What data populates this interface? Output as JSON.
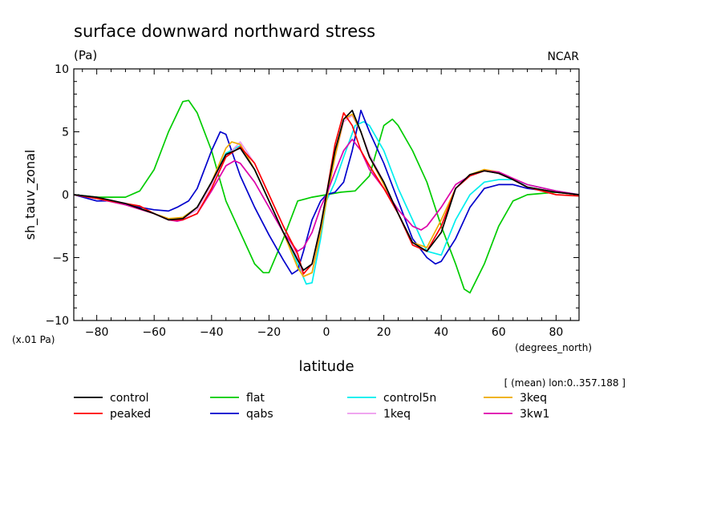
{
  "chart_data": {
    "type": "line",
    "title": "surface downward northward stress",
    "units": "(Pa)",
    "source": "NCAR",
    "ylabel": "sh_tauv_zonal",
    "xlabel": "latitude",
    "xunits": "(degrees_north)",
    "yscale_note": "(x.01 Pa)",
    "mean_note": "[ (mean) lon:0..357.188 ]",
    "xlim": [
      -88,
      88
    ],
    "ylim": [
      -10,
      10
    ],
    "xticks": [
      -80,
      -60,
      -40,
      -20,
      0,
      20,
      40,
      60,
      80
    ],
    "yticks": [
      -10,
      -5,
      0,
      5,
      10
    ],
    "legend_position": "bottom",
    "series": [
      {
        "name": "control",
        "color": "#000000",
        "x": [
          -88,
          -80,
          -70,
          -60,
          -55,
          -50,
          -45,
          -40,
          -35,
          -30,
          -25,
          -20,
          -15,
          -10,
          -8,
          -5,
          -2,
          0,
          3,
          6,
          9,
          12,
          15,
          20,
          25,
          30,
          35,
          40,
          45,
          50,
          55,
          60,
          65,
          70,
          80,
          88
        ],
        "y": [
          0,
          -0.2,
          -0.7,
          -1.5,
          -2.0,
          -1.9,
          -1.0,
          1.0,
          3.2,
          3.7,
          2.0,
          -0.5,
          -3.0,
          -5.2,
          -6.0,
          -5.5,
          -2.5,
          0,
          3.5,
          6.0,
          6.7,
          5.0,
          3.0,
          1.0,
          -1.5,
          -3.8,
          -4.5,
          -3.0,
          0.5,
          1.6,
          1.9,
          1.7,
          1.2,
          0.6,
          0.2,
          0
        ]
      },
      {
        "name": "peaked",
        "color": "#ff0000",
        "x": [
          -88,
          -80,
          -70,
          -65,
          -60,
          -55,
          -50,
          -45,
          -40,
          -35,
          -30,
          -25,
          -20,
          -15,
          -10,
          -8,
          -5,
          -2,
          0,
          3,
          6,
          9,
          12,
          15,
          20,
          25,
          30,
          35,
          40,
          45,
          50,
          55,
          60,
          65,
          70,
          80,
          88
        ],
        "y": [
          0,
          -0.3,
          -0.7,
          -0.9,
          -1.5,
          -2.0,
          -2.0,
          -1.5,
          0.5,
          3.0,
          3.8,
          2.5,
          0,
          -2.5,
          -4.7,
          -6.3,
          -5.5,
          -2.5,
          0,
          4.0,
          6.5,
          5.5,
          3.5,
          2.3,
          0.5,
          -1.5,
          -4.0,
          -4.5,
          -2.5,
          0.5,
          1.5,
          1.9,
          1.7,
          1.2,
          0.6,
          0,
          -0.1
        ]
      },
      {
        "name": "flat",
        "color": "#00cc00",
        "x": [
          -88,
          -80,
          -75,
          -70,
          -65,
          -60,
          -55,
          -50,
          -48,
          -45,
          -40,
          -35,
          -30,
          -25,
          -22,
          -20,
          -15,
          -10,
          -5,
          0,
          5,
          10,
          15,
          20,
          23,
          25,
          30,
          35,
          40,
          45,
          48,
          50,
          55,
          60,
          65,
          70,
          80,
          88
        ],
        "y": [
          0,
          -0.2,
          -0.2,
          -0.2,
          0.3,
          2.0,
          5.0,
          7.4,
          7.5,
          6.5,
          3.5,
          -0.5,
          -3.0,
          -5.5,
          -6.2,
          -6.2,
          -3.5,
          -0.5,
          -0.2,
          0,
          0.2,
          0.3,
          1.5,
          5.5,
          6.0,
          5.5,
          3.5,
          1.0,
          -2.5,
          -5.5,
          -7.5,
          -7.8,
          -5.5,
          -2.5,
          -0.5,
          0,
          0.2,
          0
        ]
      },
      {
        "name": "qabs",
        "color": "#0000cc",
        "x": [
          -88,
          -80,
          -75,
          -70,
          -60,
          -55,
          -52,
          -48,
          -45,
          -40,
          -37,
          -35,
          -30,
          -25,
          -20,
          -15,
          -12,
          -10,
          -8,
          -5,
          -2,
          0,
          3,
          6,
          9,
          12,
          15,
          20,
          25,
          30,
          35,
          38,
          40,
          45,
          50,
          55,
          60,
          65,
          70,
          80,
          88
        ],
        "y": [
          0,
          -0.5,
          -0.5,
          -0.8,
          -1.2,
          -1.3,
          -1.0,
          -0.5,
          0.5,
          3.5,
          5.0,
          4.8,
          1.5,
          -1.0,
          -3.2,
          -5.2,
          -6.3,
          -6.0,
          -4.5,
          -2.0,
          -0.5,
          0,
          0.2,
          1.0,
          3.5,
          6.7,
          5.0,
          2.5,
          -0.5,
          -3.5,
          -5.0,
          -5.5,
          -5.3,
          -3.5,
          -1.0,
          0.5,
          0.8,
          0.8,
          0.5,
          0.2,
          0
        ]
      },
      {
        "name": "control5n",
        "color": "#00eeee",
        "x": [
          -88,
          -80,
          -70,
          -60,
          -55,
          -50,
          -45,
          -40,
          -35,
          -30,
          -25,
          -20,
          -15,
          -10,
          -7,
          -5,
          -2,
          0,
          3,
          6,
          10,
          13,
          15,
          20,
          25,
          30,
          35,
          40,
          45,
          50,
          55,
          60,
          65,
          70,
          80,
          88
        ],
        "y": [
          0,
          -0.3,
          -0.7,
          -1.5,
          -2.0,
          -1.8,
          -1.0,
          1.0,
          3.3,
          3.9,
          2.0,
          -0.5,
          -3.0,
          -5.5,
          -7.1,
          -7.0,
          -3.5,
          -0.5,
          1.0,
          3.0,
          5.5,
          5.8,
          5.5,
          3.5,
          0.5,
          -2.0,
          -4.5,
          -4.8,
          -2.0,
          0,
          1.0,
          1.2,
          1.2,
          0.8,
          0.3,
          0
        ]
      },
      {
        "name": "1keq",
        "color": "#ee99ee",
        "x": [
          -88,
          -80,
          -70,
          -60,
          -55,
          -50,
          -45,
          -40,
          -35,
          -30,
          -25,
          -20,
          -15,
          -10,
          -8,
          -5,
          -2,
          0,
          3,
          6,
          9,
          12,
          15,
          20,
          25,
          30,
          35,
          40,
          45,
          50,
          55,
          60,
          65,
          70,
          80,
          88
        ],
        "y": [
          0,
          -0.3,
          -0.8,
          -1.5,
          -2.0,
          -1.9,
          -1.2,
          0.8,
          3.0,
          4.2,
          2.5,
          0,
          -2.5,
          -5.0,
          -6.5,
          -6.2,
          -3.0,
          -0.3,
          3.0,
          5.8,
          6.3,
          5.0,
          3.2,
          1.0,
          -1.5,
          -3.8,
          -4.5,
          -2.5,
          0.5,
          1.6,
          1.9,
          1.7,
          1.2,
          0.6,
          0.2,
          0
        ]
      },
      {
        "name": "3keq",
        "color": "#eeaa00",
        "x": [
          -88,
          -80,
          -70,
          -60,
          -55,
          -50,
          -45,
          -40,
          -35,
          -33,
          -30,
          -25,
          -20,
          -15,
          -10,
          -8,
          -5,
          -2,
          0,
          3,
          6,
          9,
          12,
          15,
          20,
          25,
          30,
          35,
          40,
          45,
          50,
          55,
          60,
          65,
          70,
          80,
          88
        ],
        "y": [
          0,
          -0.3,
          -0.8,
          -1.5,
          -1.9,
          -1.8,
          -1.0,
          1.0,
          3.7,
          4.2,
          4.0,
          2.0,
          -0.5,
          -3.0,
          -5.8,
          -6.5,
          -6.2,
          -3.0,
          -0.5,
          3.0,
          6.0,
          6.4,
          5.0,
          3.0,
          0.8,
          -1.5,
          -3.8,
          -4.2,
          -2.0,
          0.5,
          1.6,
          2.0,
          1.8,
          1.2,
          0.6,
          0.2,
          0
        ]
      },
      {
        "name": "3kw1",
        "color": "#dd00aa",
        "x": [
          -88,
          -80,
          -70,
          -60,
          -55,
          -52,
          -50,
          -45,
          -40,
          -35,
          -32,
          -30,
          -25,
          -20,
          -15,
          -10,
          -8,
          -5,
          -2,
          0,
          3,
          6,
          9,
          12,
          15,
          20,
          25,
          30,
          33,
          35,
          40,
          45,
          50,
          55,
          60,
          65,
          70,
          80,
          88
        ],
        "y": [
          0,
          -0.3,
          -0.8,
          -1.5,
          -2.0,
          -2.1,
          -2.0,
          -1.5,
          0.3,
          2.3,
          2.7,
          2.5,
          1.0,
          -1.0,
          -3.0,
          -4.5,
          -4.2,
          -3.0,
          -1.0,
          0,
          1.8,
          3.5,
          4.4,
          3.5,
          2.0,
          0.5,
          -1.2,
          -2.5,
          -2.8,
          -2.5,
          -1.0,
          0.8,
          1.5,
          1.9,
          1.8,
          1.3,
          0.8,
          0.3,
          0
        ]
      }
    ]
  }
}
